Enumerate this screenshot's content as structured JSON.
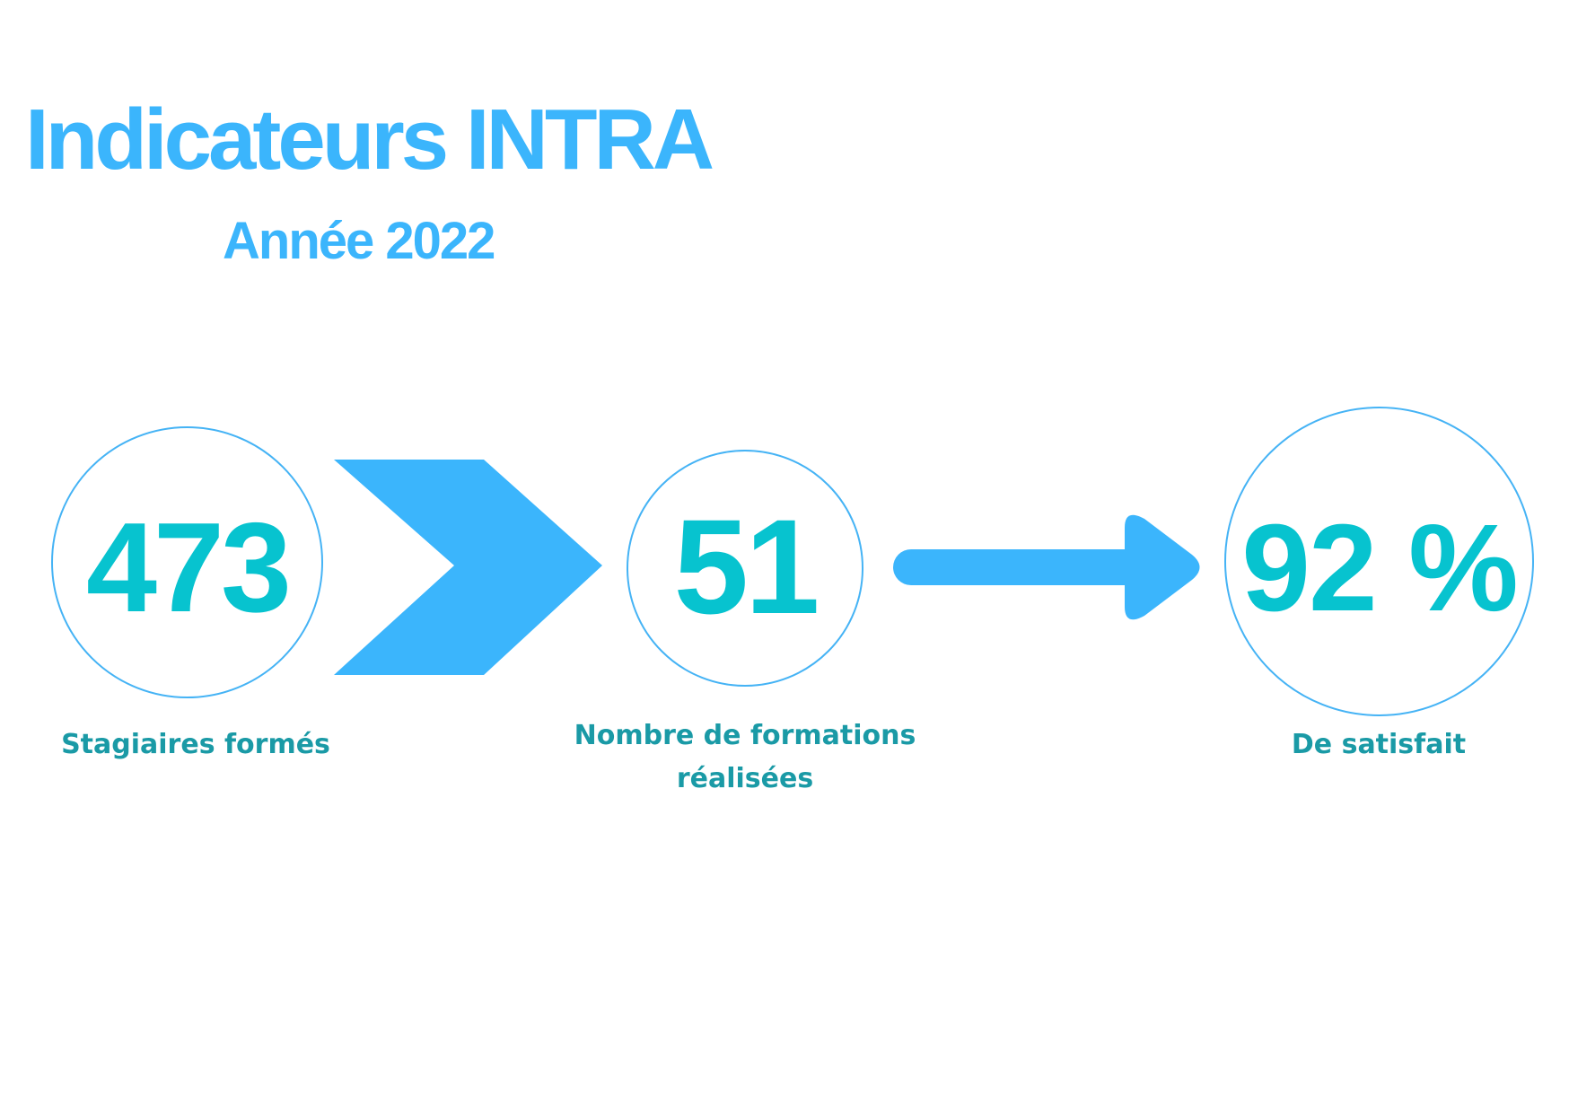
{
  "header": {
    "title": "Indicateurs INTRA",
    "subtitle": "Année 2022"
  },
  "indicators": [
    {
      "value": "473",
      "label": "Stagiaires formés"
    },
    {
      "value": "51",
      "label_line1": "Nombre de formations",
      "label_line2": "réalisées"
    },
    {
      "value": "92 %",
      "label": "De satisfait"
    }
  ],
  "colors": {
    "title": "#3bb5fc",
    "value": "#07c3cf",
    "label": "#1a9aa6",
    "circle_border": "#45b3f5",
    "connector": "#3bb5fc"
  },
  "icons": {
    "connector_1": "chevron-right-icon",
    "connector_2": "arrow-right-icon"
  }
}
